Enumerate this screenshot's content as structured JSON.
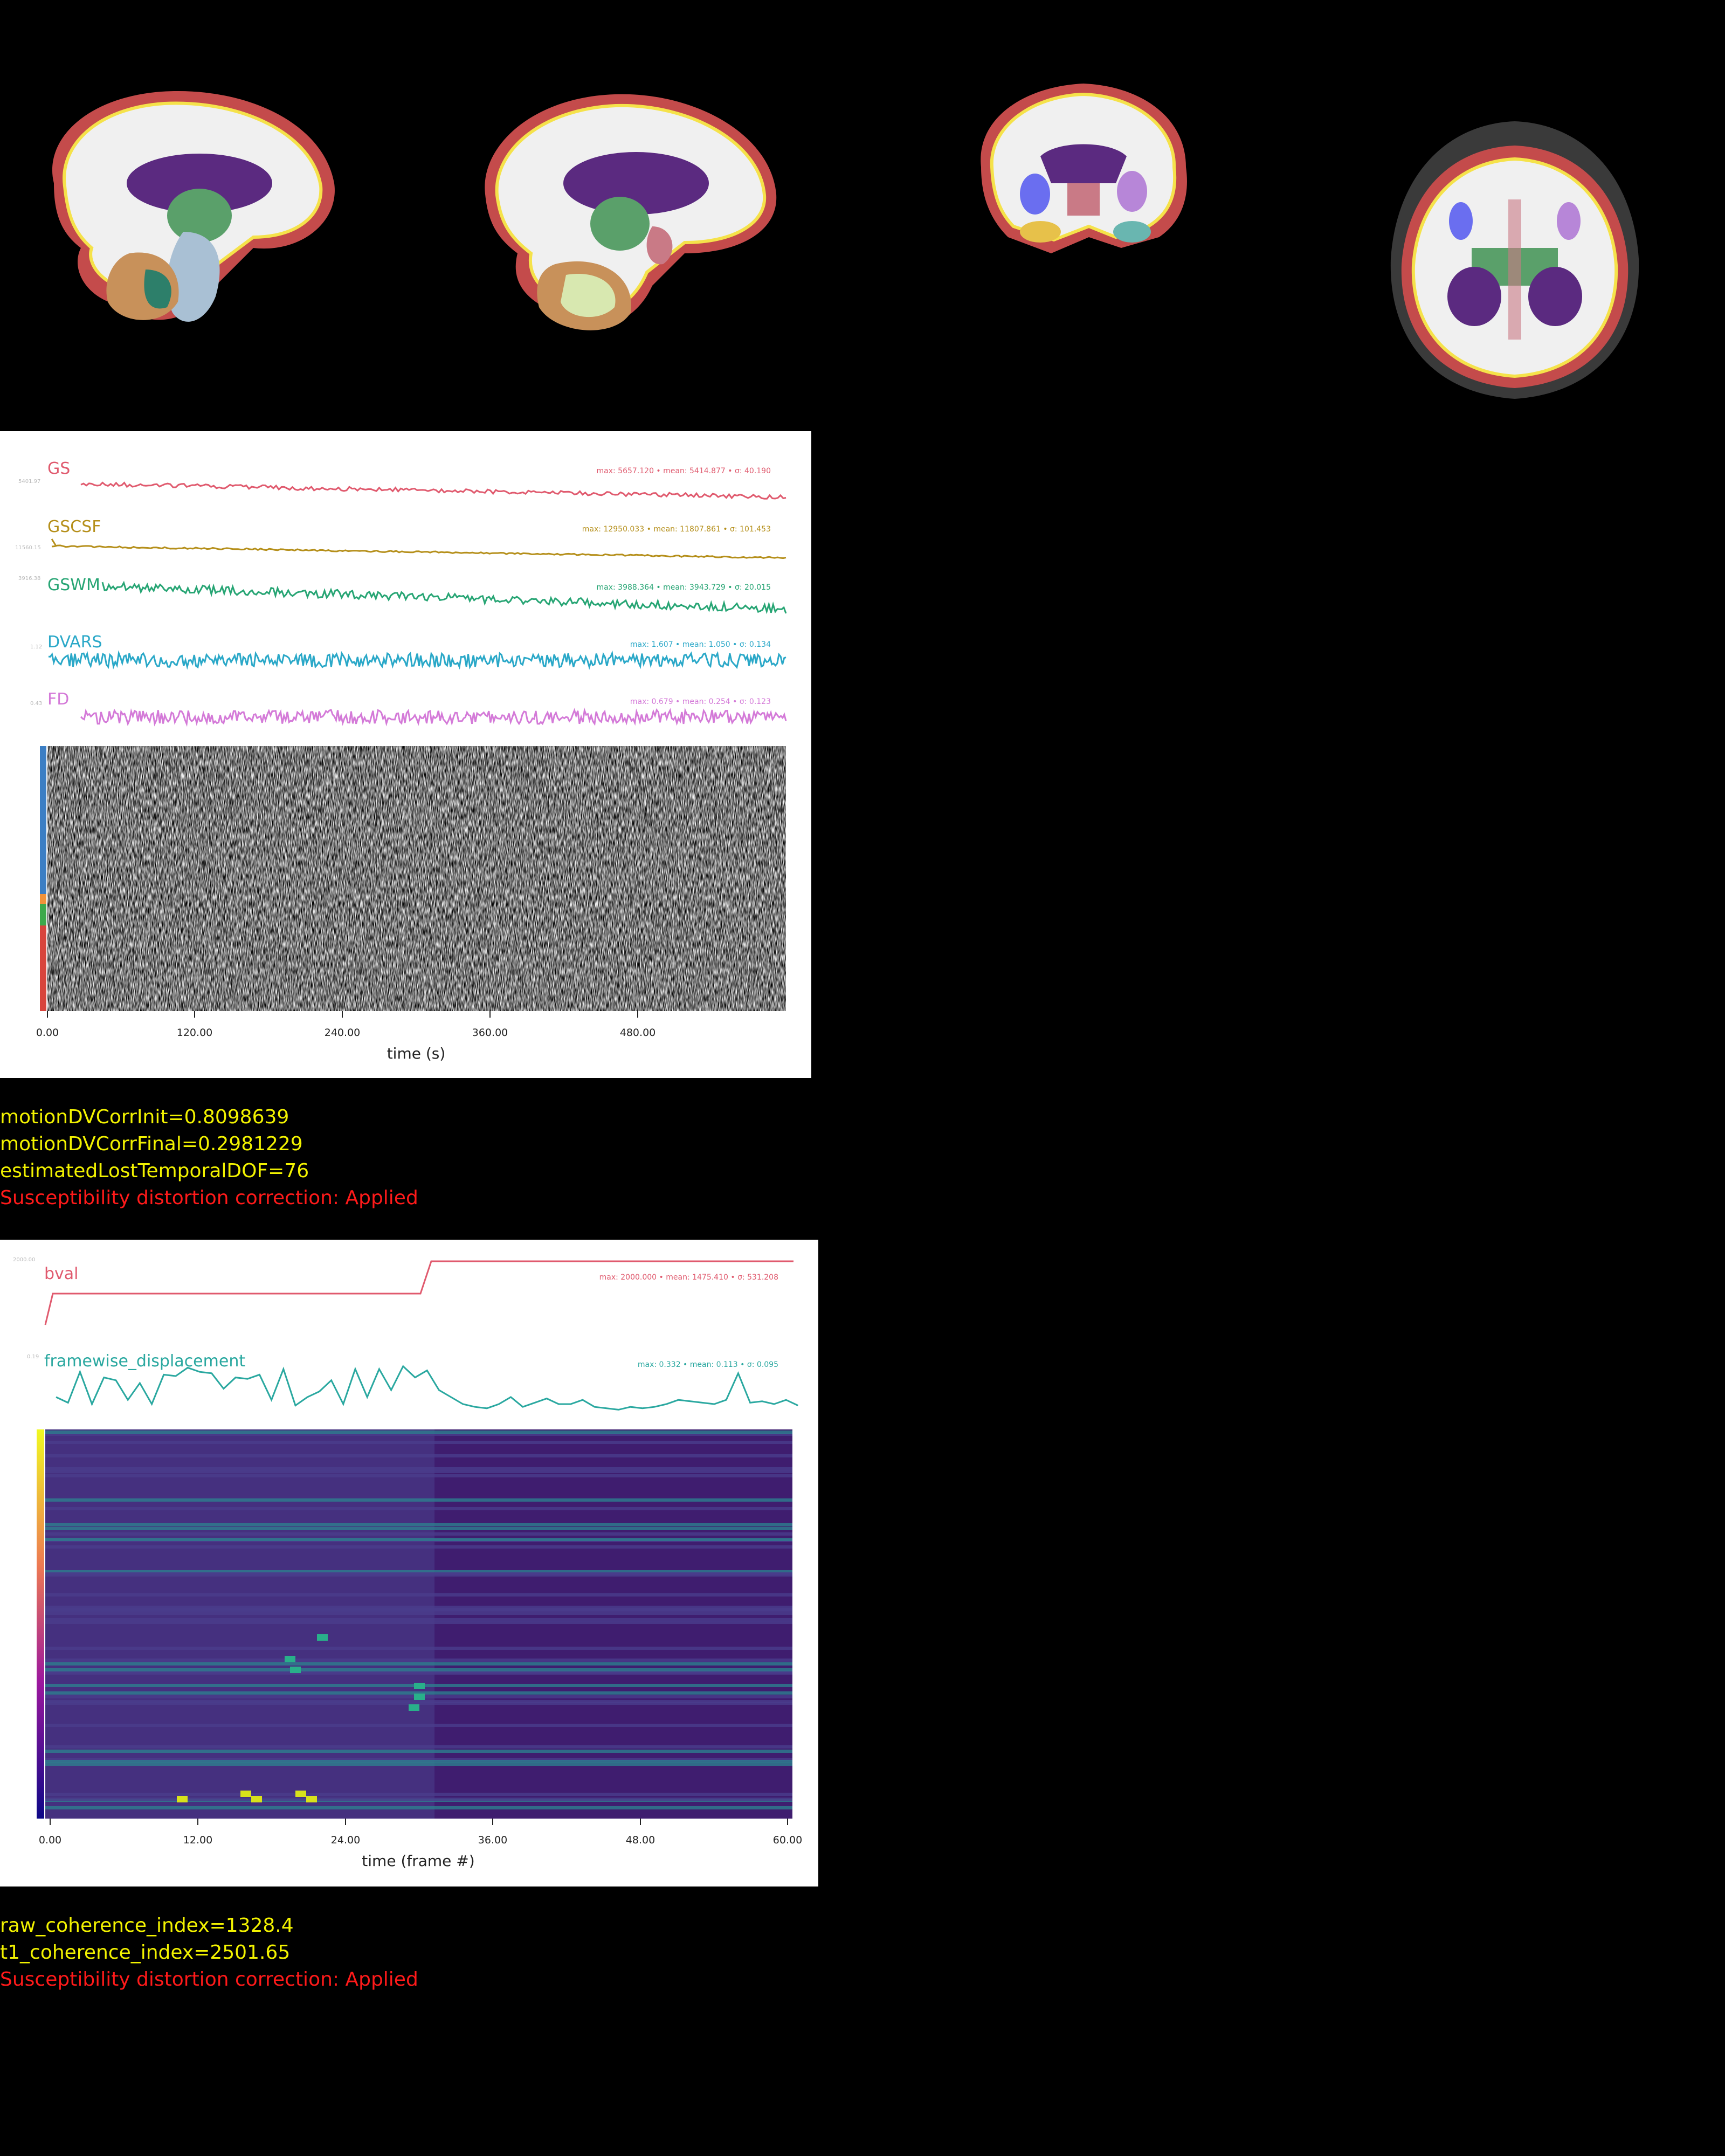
{
  "fmri_report": {
    "signals": [
      {
        "key": "gs",
        "label": "GS",
        "color": "#e05a6e",
        "stats": "max: 5657.120 • mean: 5414.877 • σ: 40.190",
        "ytick": "5401.97"
      },
      {
        "key": "gscsf",
        "label": "GSCSF",
        "color": "#b58f1a",
        "stats": "max: 12950.033 • mean: 11807.861 • σ: 101.453",
        "ytick": "11560.15"
      },
      {
        "key": "gswm",
        "label": "GSWM",
        "color": "#27a574",
        "stats": "max: 3988.364 • mean: 3943.729 • σ: 20.015",
        "ytick": "3916.38"
      },
      {
        "key": "dvars",
        "label": "DVARS",
        "color": "#2aa8c8",
        "stats": "max: 1.607 • mean: 1.050 • σ: 0.134",
        "ytick": "1.12"
      },
      {
        "key": "fd",
        "label": "FD",
        "color": "#d47ad8",
        "stats": "max: 0.679 • mean: 0.254 • σ: 0.123",
        "ytick": "0.43"
      }
    ],
    "xticks": [
      "0.00",
      "120.00",
      "240.00",
      "360.00",
      "480.00"
    ],
    "xlabel": "time (s)",
    "metrics": [
      {
        "text": "motionDVCorrInit=0.8098639",
        "color": "yellow"
      },
      {
        "text": "motionDVCorrFinal=0.2981229",
        "color": "yellow"
      },
      {
        "text": "estimatedLostTemporalDOF=76",
        "color": "yellow"
      },
      {
        "text": "Susceptibility distortion correction: Applied",
        "color": "red"
      }
    ]
  },
  "dwi_report": {
    "signals": [
      {
        "key": "bval",
        "label": "bval",
        "color": "#e05a6e",
        "stats": "max: 2000.000 • mean: 1475.410 • σ: 531.208",
        "ytick": "2000.00"
      },
      {
        "key": "fd",
        "label": "framewise_displacement",
        "color": "#2aa8a0",
        "stats": "max: 0.332 • mean: 0.113 • σ: 0.095",
        "ytick": "0.19"
      }
    ],
    "xticks": [
      "0.00",
      "12.00",
      "24.00",
      "36.00",
      "48.00",
      "60.00"
    ],
    "xlabel": "time (frame #)",
    "metrics": [
      {
        "text": "raw_coherence_index=1328.4",
        "color": "yellow"
      },
      {
        "text": "t1_coherence_index=2501.65",
        "color": "yellow"
      },
      {
        "text": "Susceptibility distortion correction: Applied",
        "color": "red"
      }
    ]
  },
  "colors": {
    "panel": "#ffffff",
    "background": "#000000",
    "yellow": "#f2f200",
    "red": "#ff1a1a"
  }
}
